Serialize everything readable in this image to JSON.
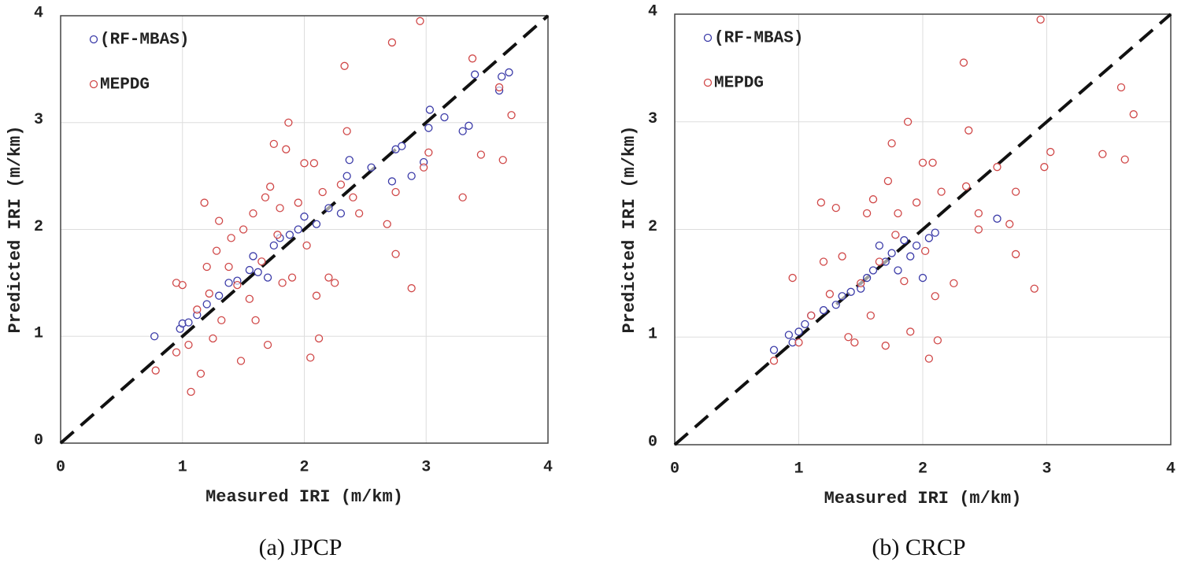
{
  "chart_data": [
    {
      "type": "scatter",
      "title": "(a) JPCP",
      "xlabel": "Measured IRI (m/km)",
      "ylabel": "Predicted IRI (m/km)",
      "xlim": [
        0,
        4
      ],
      "ylim": [
        0,
        4
      ],
      "xticks": [
        0,
        1,
        2,
        3,
        4
      ],
      "yticks": [
        0,
        1,
        2,
        3,
        4
      ],
      "grid": true,
      "legend": "upper left",
      "series": [
        {
          "name": "(RF-MBAS)",
          "color": "#3b3ba8",
          "x": [
            0.77,
            0.98,
            1.0,
            1.05,
            1.12,
            1.2,
            1.3,
            1.38,
            1.45,
            1.55,
            1.58,
            1.62,
            1.7,
            1.75,
            1.8,
            1.88,
            1.95,
            2.0,
            2.1,
            2.2,
            2.3,
            2.35,
            2.37,
            2.55,
            2.72,
            2.75,
            2.8,
            2.88,
            2.98,
            3.02,
            3.03,
            3.15,
            3.3,
            3.35,
            3.4,
            3.6,
            3.62,
            3.68
          ],
          "values": [
            1.0,
            1.07,
            1.12,
            1.13,
            1.2,
            1.3,
            1.38,
            1.5,
            1.52,
            1.62,
            1.75,
            1.6,
            1.55,
            1.85,
            1.92,
            1.95,
            2.0,
            2.12,
            2.05,
            2.2,
            2.15,
            2.5,
            2.65,
            2.58,
            2.45,
            2.75,
            2.78,
            2.5,
            2.63,
            2.95,
            3.12,
            3.05,
            2.92,
            2.97,
            3.45,
            3.3,
            3.43,
            3.47
          ]
        },
        {
          "name": "MEPDG",
          "color": "#d04848",
          "x": [
            0.78,
            0.95,
            0.95,
            1.0,
            1.05,
            1.07,
            1.12,
            1.15,
            1.18,
            1.2,
            1.22,
            1.25,
            1.28,
            1.3,
            1.32,
            1.38,
            1.4,
            1.45,
            1.48,
            1.5,
            1.55,
            1.58,
            1.6,
            1.65,
            1.68,
            1.7,
            1.72,
            1.75,
            1.78,
            1.8,
            1.82,
            1.85,
            1.87,
            1.9,
            1.95,
            2.0,
            2.02,
            2.05,
            2.08,
            2.1,
            2.12,
            2.15,
            2.2,
            2.25,
            2.3,
            2.33,
            2.35,
            2.4,
            2.45,
            2.68,
            2.72,
            2.75,
            2.75,
            2.88,
            2.95,
            2.98,
            3.02,
            3.3,
            3.38,
            3.45,
            3.6,
            3.63,
            3.7
          ],
          "values": [
            0.68,
            1.5,
            0.85,
            1.48,
            0.92,
            0.48,
            1.25,
            0.65,
            2.25,
            1.65,
            1.4,
            0.98,
            1.8,
            2.08,
            1.15,
            1.65,
            1.92,
            1.48,
            0.77,
            2.0,
            1.35,
            2.15,
            1.15,
            1.7,
            2.3,
            0.92,
            2.4,
            2.8,
            1.95,
            2.2,
            1.5,
            2.75,
            3.0,
            1.55,
            2.25,
            2.62,
            1.85,
            0.8,
            2.62,
            1.38,
            0.98,
            2.35,
            1.55,
            1.5,
            2.42,
            3.53,
            2.92,
            2.3,
            2.15,
            2.05,
            3.75,
            2.35,
            1.77,
            1.45,
            3.95,
            2.58,
            2.72,
            2.3,
            3.6,
            2.7,
            3.33,
            2.65,
            3.07
          ]
        }
      ]
    },
    {
      "type": "scatter",
      "title": "(b) CRCP",
      "xlabel": "Measured IRI (m/km)",
      "ylabel": "Predicted IRI (m/km)",
      "xlim": [
        0,
        4
      ],
      "ylim": [
        0,
        4
      ],
      "xticks": [
        0,
        1,
        2,
        3,
        4
      ],
      "yticks": [
        0,
        1,
        2,
        3,
        4
      ],
      "grid": true,
      "legend": "upper left",
      "series": [
        {
          "name": "(RF-MBAS)",
          "color": "#3b3ba8",
          "x": [
            0.8,
            0.92,
            0.95,
            1.0,
            1.05,
            1.1,
            1.2,
            1.3,
            1.35,
            1.42,
            1.5,
            1.55,
            1.6,
            1.65,
            1.7,
            1.75,
            1.8,
            1.85,
            1.9,
            1.95,
            2.0,
            2.05,
            2.1,
            2.6
          ],
          "values": [
            0.88,
            1.02,
            0.95,
            1.05,
            1.12,
            1.2,
            1.25,
            1.3,
            1.38,
            1.42,
            1.45,
            1.55,
            1.62,
            1.85,
            1.7,
            1.78,
            1.62,
            1.9,
            1.75,
            1.85,
            1.55,
            1.92,
            1.97,
            2.1
          ]
        },
        {
          "name": "MEPDG",
          "color": "#d04848",
          "x": [
            0.8,
            0.95,
            1.0,
            1.1,
            1.18,
            1.2,
            1.25,
            1.3,
            1.35,
            1.4,
            1.45,
            1.5,
            1.55,
            1.58,
            1.6,
            1.65,
            1.7,
            1.72,
            1.75,
            1.78,
            1.8,
            1.85,
            1.88,
            1.9,
            1.95,
            2.0,
            2.02,
            2.05,
            2.08,
            2.1,
            2.12,
            2.15,
            2.25,
            2.35,
            2.33,
            2.37,
            2.45,
            2.45,
            2.6,
            2.7,
            2.75,
            2.75,
            2.9,
            2.95,
            2.98,
            3.03,
            3.45,
            3.6,
            3.63,
            3.7
          ],
          "values": [
            0.78,
            1.55,
            0.95,
            1.2,
            2.25,
            1.7,
            1.4,
            2.2,
            1.75,
            1.0,
            0.95,
            1.5,
            2.15,
            1.2,
            2.28,
            1.7,
            0.92,
            2.45,
            2.8,
            1.95,
            2.15,
            1.52,
            3.0,
            1.05,
            2.25,
            2.62,
            1.8,
            0.8,
            2.62,
            1.38,
            0.97,
            2.35,
            1.5,
            2.4,
            3.55,
            2.92,
            2.15,
            2.0,
            2.58,
            2.05,
            2.35,
            1.77,
            1.45,
            3.95,
            2.58,
            2.72,
            2.7,
            3.32,
            2.65,
            3.07
          ]
        }
      ]
    }
  ]
}
